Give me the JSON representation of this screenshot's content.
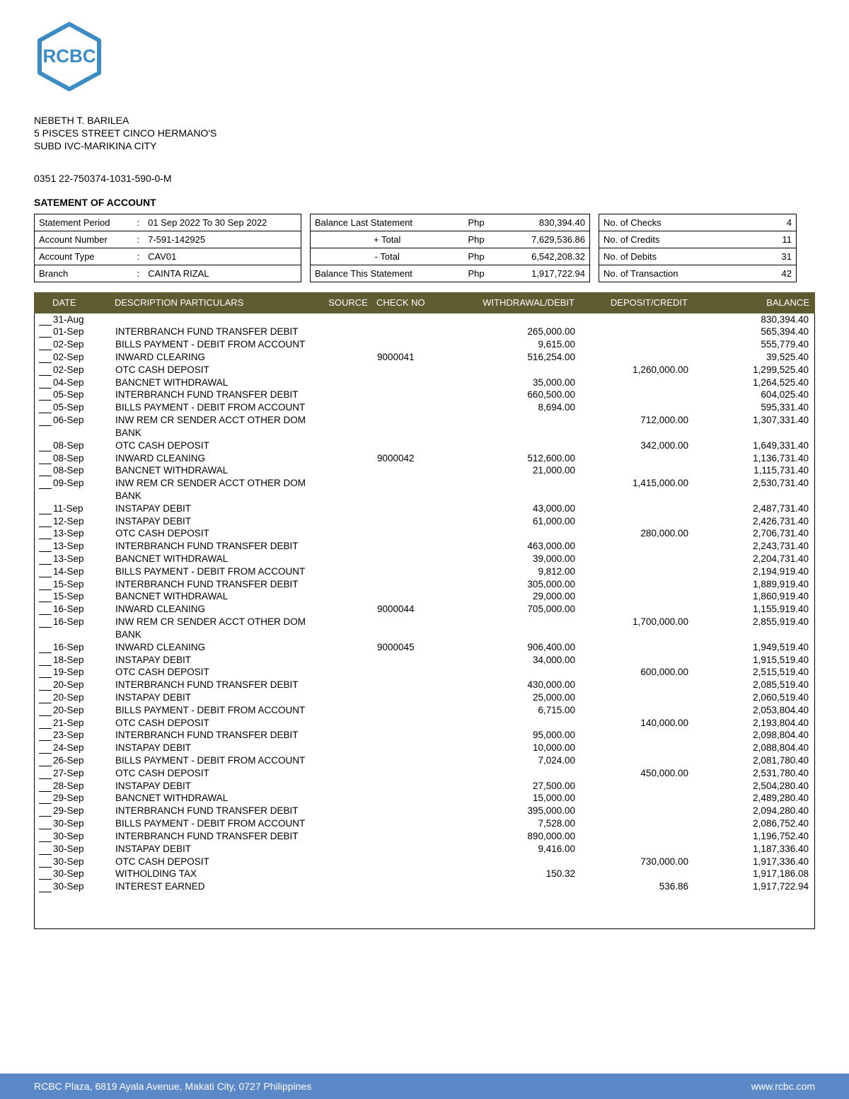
{
  "logo_text": "RCBC",
  "logo_color": "#3b8bc4",
  "address": {
    "line1": "NEBETH T. BARILEA",
    "line2": "5 PISCES STREET CINCO HERMANO'S",
    "line3": "SUBD IVC-MARIKINA CITY"
  },
  "reference": "0351 22-750374-1031-590-0-M",
  "statement_title": "SATEMENT OF ACCOUNT",
  "account_info": {
    "labels": {
      "period": "Statement Period",
      "acct_no": "Account Number",
      "acct_type": "Account Type",
      "branch": "Branch"
    },
    "period": "01 Sep 2022 To 30 Sep 2022",
    "acct_no": "7-591-142925",
    "acct_type": "CAV01",
    "branch": "CAINTA RIZAL"
  },
  "balance_info": {
    "currency": "Php",
    "labels": {
      "last": "Balance Last Statement",
      "plus": "+ Total",
      "minus": "- Total",
      "this": "Balance This Statement"
    },
    "last": "830,394.40",
    "plus": "7,629,536.86",
    "minus": "6,542,208.32",
    "this": "1,917,722.94"
  },
  "counts": {
    "labels": {
      "checks": "No. of Checks",
      "credits": "No. of Credits",
      "debits": "No. of Debits",
      "txn": "No. of Transaction"
    },
    "checks": "4",
    "credits": "11",
    "debits": "31",
    "txn": "42"
  },
  "table": {
    "header_bg": "#5f5c31",
    "header_fg": "#ffffff",
    "columns": {
      "date": "DATE",
      "desc": "DESCRIPTION PARTICULARS",
      "source": "SOURCE",
      "check": "CHECK NO",
      "wd": "WITHDRAWAL/DEBIT",
      "dep": "DEPOSIT/CREDIT",
      "bal": "BALANCE"
    },
    "rows": [
      {
        "date": "31-Aug",
        "desc": "",
        "src": "",
        "chk": "",
        "wd": "",
        "dep": "",
        "bal": "830,394.40"
      },
      {
        "date": "01-Sep",
        "desc": "INTERBRANCH FUND TRANSFER DEBIT",
        "src": "",
        "chk": "",
        "wd": "265,000.00",
        "dep": "",
        "bal": "565,394.40"
      },
      {
        "date": "02-Sep",
        "desc": "BILLS PAYMENT - DEBIT FROM ACCOUNT",
        "src": "",
        "chk": "",
        "wd": "9,615.00",
        "dep": "",
        "bal": "555,779.40"
      },
      {
        "date": "02-Sep",
        "desc": "INWARD CLEARING",
        "src": "",
        "chk": "9000041",
        "wd": "516,254.00",
        "dep": "",
        "bal": "39,525.40"
      },
      {
        "date": "02-Sep",
        "desc": "OTC CASH DEPOSIT",
        "src": "",
        "chk": "",
        "wd": "",
        "dep": "1,260,000.00",
        "bal": "1,299,525.40"
      },
      {
        "date": "04-Sep",
        "desc": "BANCNET WITHDRAWAL",
        "src": "",
        "chk": "",
        "wd": "35,000.00",
        "dep": "",
        "bal": "1,264,525.40"
      },
      {
        "date": "05-Sep",
        "desc": "INTERBRANCH FUND TRANSFER DEBIT",
        "src": "",
        "chk": "",
        "wd": "660,500.00",
        "dep": "",
        "bal": "604,025.40"
      },
      {
        "date": "05-Sep",
        "desc": "BILLS PAYMENT - DEBIT FROM ACCOUNT",
        "src": "",
        "chk": "",
        "wd": "8,694.00",
        "dep": "",
        "bal": "595,331.40"
      },
      {
        "date": "06-Sep",
        "desc": "INW REM CR SENDER ACCT OTHER DOM BANK",
        "src": "",
        "chk": "",
        "wd": "",
        "dep": "712,000.00",
        "bal": "1,307,331.40"
      },
      {
        "date": "08-Sep",
        "desc": "OTC CASH DEPOSIT",
        "src": "",
        "chk": "",
        "wd": "",
        "dep": "342,000.00",
        "bal": "1,649,331.40"
      },
      {
        "date": "08-Sep",
        "desc": "INWARD CLEANING",
        "src": "",
        "chk": "9000042",
        "wd": "512,600.00",
        "dep": "",
        "bal": "1,136,731.40"
      },
      {
        "date": "08-Sep",
        "desc": "BANCNET WITHDRAWAL",
        "src": "",
        "chk": "",
        "wd": "21,000.00",
        "dep": "",
        "bal": "1,115,731.40"
      },
      {
        "date": "09-Sep",
        "desc": "INW REM CR SENDER ACCT OTHER DOM BANK",
        "src": "",
        "chk": "",
        "wd": "",
        "dep": "1,415,000.00",
        "bal": "2,530,731.40"
      },
      {
        "date": "11-Sep",
        "desc": "INSTAPAY DEBIT",
        "src": "",
        "chk": "",
        "wd": "43,000.00",
        "dep": "",
        "bal": "2,487,731.40"
      },
      {
        "date": "12-Sep",
        "desc": "INSTAPAY DEBIT",
        "src": "",
        "chk": "",
        "wd": "61,000.00",
        "dep": "",
        "bal": "2,426,731.40"
      },
      {
        "date": "13-Sep",
        "desc": "OTC CASH DEPOSIT",
        "src": "",
        "chk": "",
        "wd": "",
        "dep": "280,000.00",
        "bal": "2,706,731.40"
      },
      {
        "date": "13-Sep",
        "desc": "INTERBRANCH FUND TRANSFER DEBIT",
        "src": "",
        "chk": "",
        "wd": "463,000.00",
        "dep": "",
        "bal": "2,243,731.40"
      },
      {
        "date": "13-Sep",
        "desc": "BANCNET WITHDRAWAL",
        "src": "",
        "chk": "",
        "wd": "39,000.00",
        "dep": "",
        "bal": "2,204,731.40"
      },
      {
        "date": "14-Sep",
        "desc": "BILLS PAYMENT - DEBIT FROM ACCOUNT",
        "src": "",
        "chk": "",
        "wd": "9,812.00",
        "dep": "",
        "bal": "2,194,919.40"
      },
      {
        "date": "15-Sep",
        "desc": "INTERBRANCH FUND TRANSFER DEBIT",
        "src": "",
        "chk": "",
        "wd": "305,000.00",
        "dep": "",
        "bal": "1,889,919.40"
      },
      {
        "date": "15-Sep",
        "desc": "BANCNET WITHDRAWAL",
        "src": "",
        "chk": "",
        "wd": "29,000.00",
        "dep": "",
        "bal": "1,860,919.40"
      },
      {
        "date": "16-Sep",
        "desc": "INWARD CLEANING",
        "src": "",
        "chk": "9000044",
        "wd": "705,000.00",
        "dep": "",
        "bal": "1,155,919.40"
      },
      {
        "date": "16-Sep",
        "desc": "INW REM CR SENDER ACCT OTHER DOM BANK",
        "src": "",
        "chk": "",
        "wd": "",
        "dep": "1,700,000.00",
        "bal": "2,855,919.40"
      },
      {
        "date": "16-Sep",
        "desc": "INWARD CLEANING",
        "src": "",
        "chk": "9000045",
        "wd": "906,400.00",
        "dep": "",
        "bal": "1,949,519.40"
      },
      {
        "date": "18-Sep",
        "desc": "INSTAPAY DEBIT",
        "src": "",
        "chk": "",
        "wd": "34,000.00",
        "dep": "",
        "bal": "1,915,519.40"
      },
      {
        "date": "19-Sep",
        "desc": "OTC CASH DEPOSIT",
        "src": "",
        "chk": "",
        "wd": "",
        "dep": "600,000.00",
        "bal": "2,515,519.40"
      },
      {
        "date": "20-Sep",
        "desc": "INTERBRANCH FUND TRANSFER DEBIT",
        "src": "",
        "chk": "",
        "wd": "430,000.00",
        "dep": "",
        "bal": "2,085,519.40"
      },
      {
        "date": "20-Sep",
        "desc": "INSTAPAY DEBIT",
        "src": "",
        "chk": "",
        "wd": "25,000.00",
        "dep": "",
        "bal": "2,060,519.40"
      },
      {
        "date": "20-Sep",
        "desc": "BILLS PAYMENT - DEBIT FROM ACCOUNT",
        "src": "",
        "chk": "",
        "wd": "6,715.00",
        "dep": "",
        "bal": "2,053,804.40"
      },
      {
        "date": "21-Sep",
        "desc": "OTC CASH DEPOSIT",
        "src": "",
        "chk": "",
        "wd": "",
        "dep": "140,000.00",
        "bal": "2,193,804.40"
      },
      {
        "date": "23-Sep",
        "desc": "INTERBRANCH FUND TRANSFER DEBIT",
        "src": "",
        "chk": "",
        "wd": "95,000.00",
        "dep": "",
        "bal": "2,098,804.40"
      },
      {
        "date": "24-Sep",
        "desc": "INSTAPAY DEBIT",
        "src": "",
        "chk": "",
        "wd": "10,000.00",
        "dep": "",
        "bal": "2,088,804.40"
      },
      {
        "date": "26-Sep",
        "desc": "BILLS PAYMENT - DEBIT FROM ACCOUNT",
        "src": "",
        "chk": "",
        "wd": "7,024.00",
        "dep": "",
        "bal": "2,081,780.40"
      },
      {
        "date": "27-Sep",
        "desc": "OTC CASH DEPOSIT",
        "src": "",
        "chk": "",
        "wd": "",
        "dep": "450,000.00",
        "bal": "2,531,780.40"
      },
      {
        "date": "28-Sep",
        "desc": "INSTAPAY DEBIT",
        "src": "",
        "chk": "",
        "wd": "27,500.00",
        "dep": "",
        "bal": "2,504,280.40"
      },
      {
        "date": "29-Sep",
        "desc": "BANCNET WITHDRAWAL",
        "src": "",
        "chk": "",
        "wd": "15,000.00",
        "dep": "",
        "bal": "2,489,280.40"
      },
      {
        "date": "29-Sep",
        "desc": "INTERBRANCH FUND TRANSFER DEBIT",
        "src": "",
        "chk": "",
        "wd": "395,000.00",
        "dep": "",
        "bal": "2,094,280.40"
      },
      {
        "date": "30-Sep",
        "desc": "BILLS PAYMENT - DEBIT FROM ACCOUNT",
        "src": "",
        "chk": "",
        "wd": "7,528.00",
        "dep": "",
        "bal": "2,086,752.40"
      },
      {
        "date": "30-Sep",
        "desc": "INTERBRANCH FUND TRANSFER DEBIT",
        "src": "",
        "chk": "",
        "wd": "890,000.00",
        "dep": "",
        "bal": "1,196,752.40"
      },
      {
        "date": "30-Sep",
        "desc": "INSTAPAY DEBIT",
        "src": "",
        "chk": "",
        "wd": "9,416.00",
        "dep": "",
        "bal": "1,187,336.40"
      },
      {
        "date": "30-Sep",
        "desc": "OTC CASH DEPOSIT",
        "src": "",
        "chk": "",
        "wd": "",
        "dep": "730,000.00",
        "bal": "1,917,336.40"
      },
      {
        "date": "30-Sep",
        "desc": "WITHOLDING TAX",
        "src": "",
        "chk": "",
        "wd": "150.32",
        "dep": "",
        "bal": "1,917,186.08"
      },
      {
        "date": "30-Sep",
        "desc": "INTEREST EARNED",
        "src": "",
        "chk": "",
        "wd": "",
        "dep": "536.86",
        "bal": "1,917,722.94"
      }
    ]
  },
  "footer": {
    "bg": "#5b88c6",
    "left": "RCBC Plaza, 6819 Ayala Avenue, Makati City, 0727 Philippines",
    "right": "www.rcbc.com"
  }
}
